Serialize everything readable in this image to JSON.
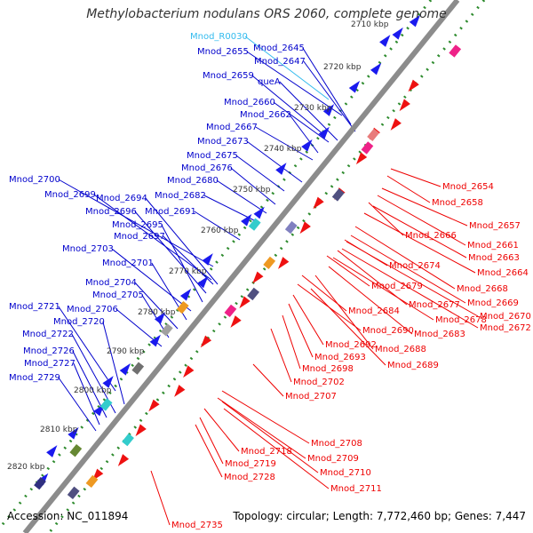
{
  "header": {
    "title": "Methylobacterium nodulans ORS 2060, complete genome"
  },
  "footer": {
    "accession": "Accession: NC_011894",
    "summary": "Topology: circular; Length: 7,772,460 bp; Genes: 7,447"
  },
  "colors": {
    "backbone": "#8c8c8c",
    "forward_label": "#0000cc",
    "reverse_label": "#ee0000",
    "rna_label": "#33bbee",
    "forward_arrow": "#1a1aee",
    "reverse_arrow": "#ee1111",
    "ticks": "#2e8b2e"
  },
  "scale_labels": [
    "2710 kbp",
    "2720 kbp",
    "2730 kbp",
    "2740 kbp",
    "2750 kbp",
    "2760 kbp",
    "2770 kbp",
    "2780 kbp",
    "2790 kbp",
    "2800 kbp",
    "2810 kbp",
    "2820 kbp"
  ],
  "forward_genes": [
    "Mnod_R0030",
    "Mnod_2645",
    "Mnod_2655",
    "Mnod_2647",
    "Mnod_2659",
    "queA",
    "Mnod_2660",
    "Mnod_2662",
    "Mnod_2667",
    "Mnod_2673",
    "Mnod_2675",
    "Mnod_2676",
    "Mnod_2680",
    "Mnod_2682",
    "Mnod_2700",
    "Mnod_2699",
    "Mnod_2694",
    "Mnod_2696",
    "Mnod_2691",
    "Mnod_2695",
    "Mnod_2697",
    "Mnod_2703",
    "Mnod_2701",
    "Mnod_2704",
    "Mnod_2705",
    "Mnod_2721",
    "Mnod_2706",
    "Mnod_2720",
    "Mnod_2722",
    "Mnod_2726",
    "Mnod_2727",
    "Mnod_2729"
  ],
  "reverse_genes": [
    "Mnod_2654",
    "Mnod_2658",
    "Mnod_2657",
    "Mnod_2666",
    "Mnod_2661",
    "Mnod_2663",
    "Mnod_2664",
    "Mnod_2674",
    "Mnod_2668",
    "Mnod_2679",
    "Mnod_2669",
    "Mnod_2677",
    "Mnod_2670",
    "Mnod_2684",
    "Mnod_2678",
    "Mnod_2672",
    "Mnod_2683",
    "Mnod_2690",
    "Mnod_2692",
    "Mnod_2688",
    "Mnod_2693",
    "Mnod_2689",
    "Mnod_2698",
    "Mnod_2702",
    "Mnod_2707",
    "Mnod_2708",
    "Mnod_2709",
    "Mnod_2718",
    "Mnod_2719",
    "Mnod_2710",
    "Mnod_2728",
    "Mnod_2711",
    "Mnod_2735"
  ]
}
